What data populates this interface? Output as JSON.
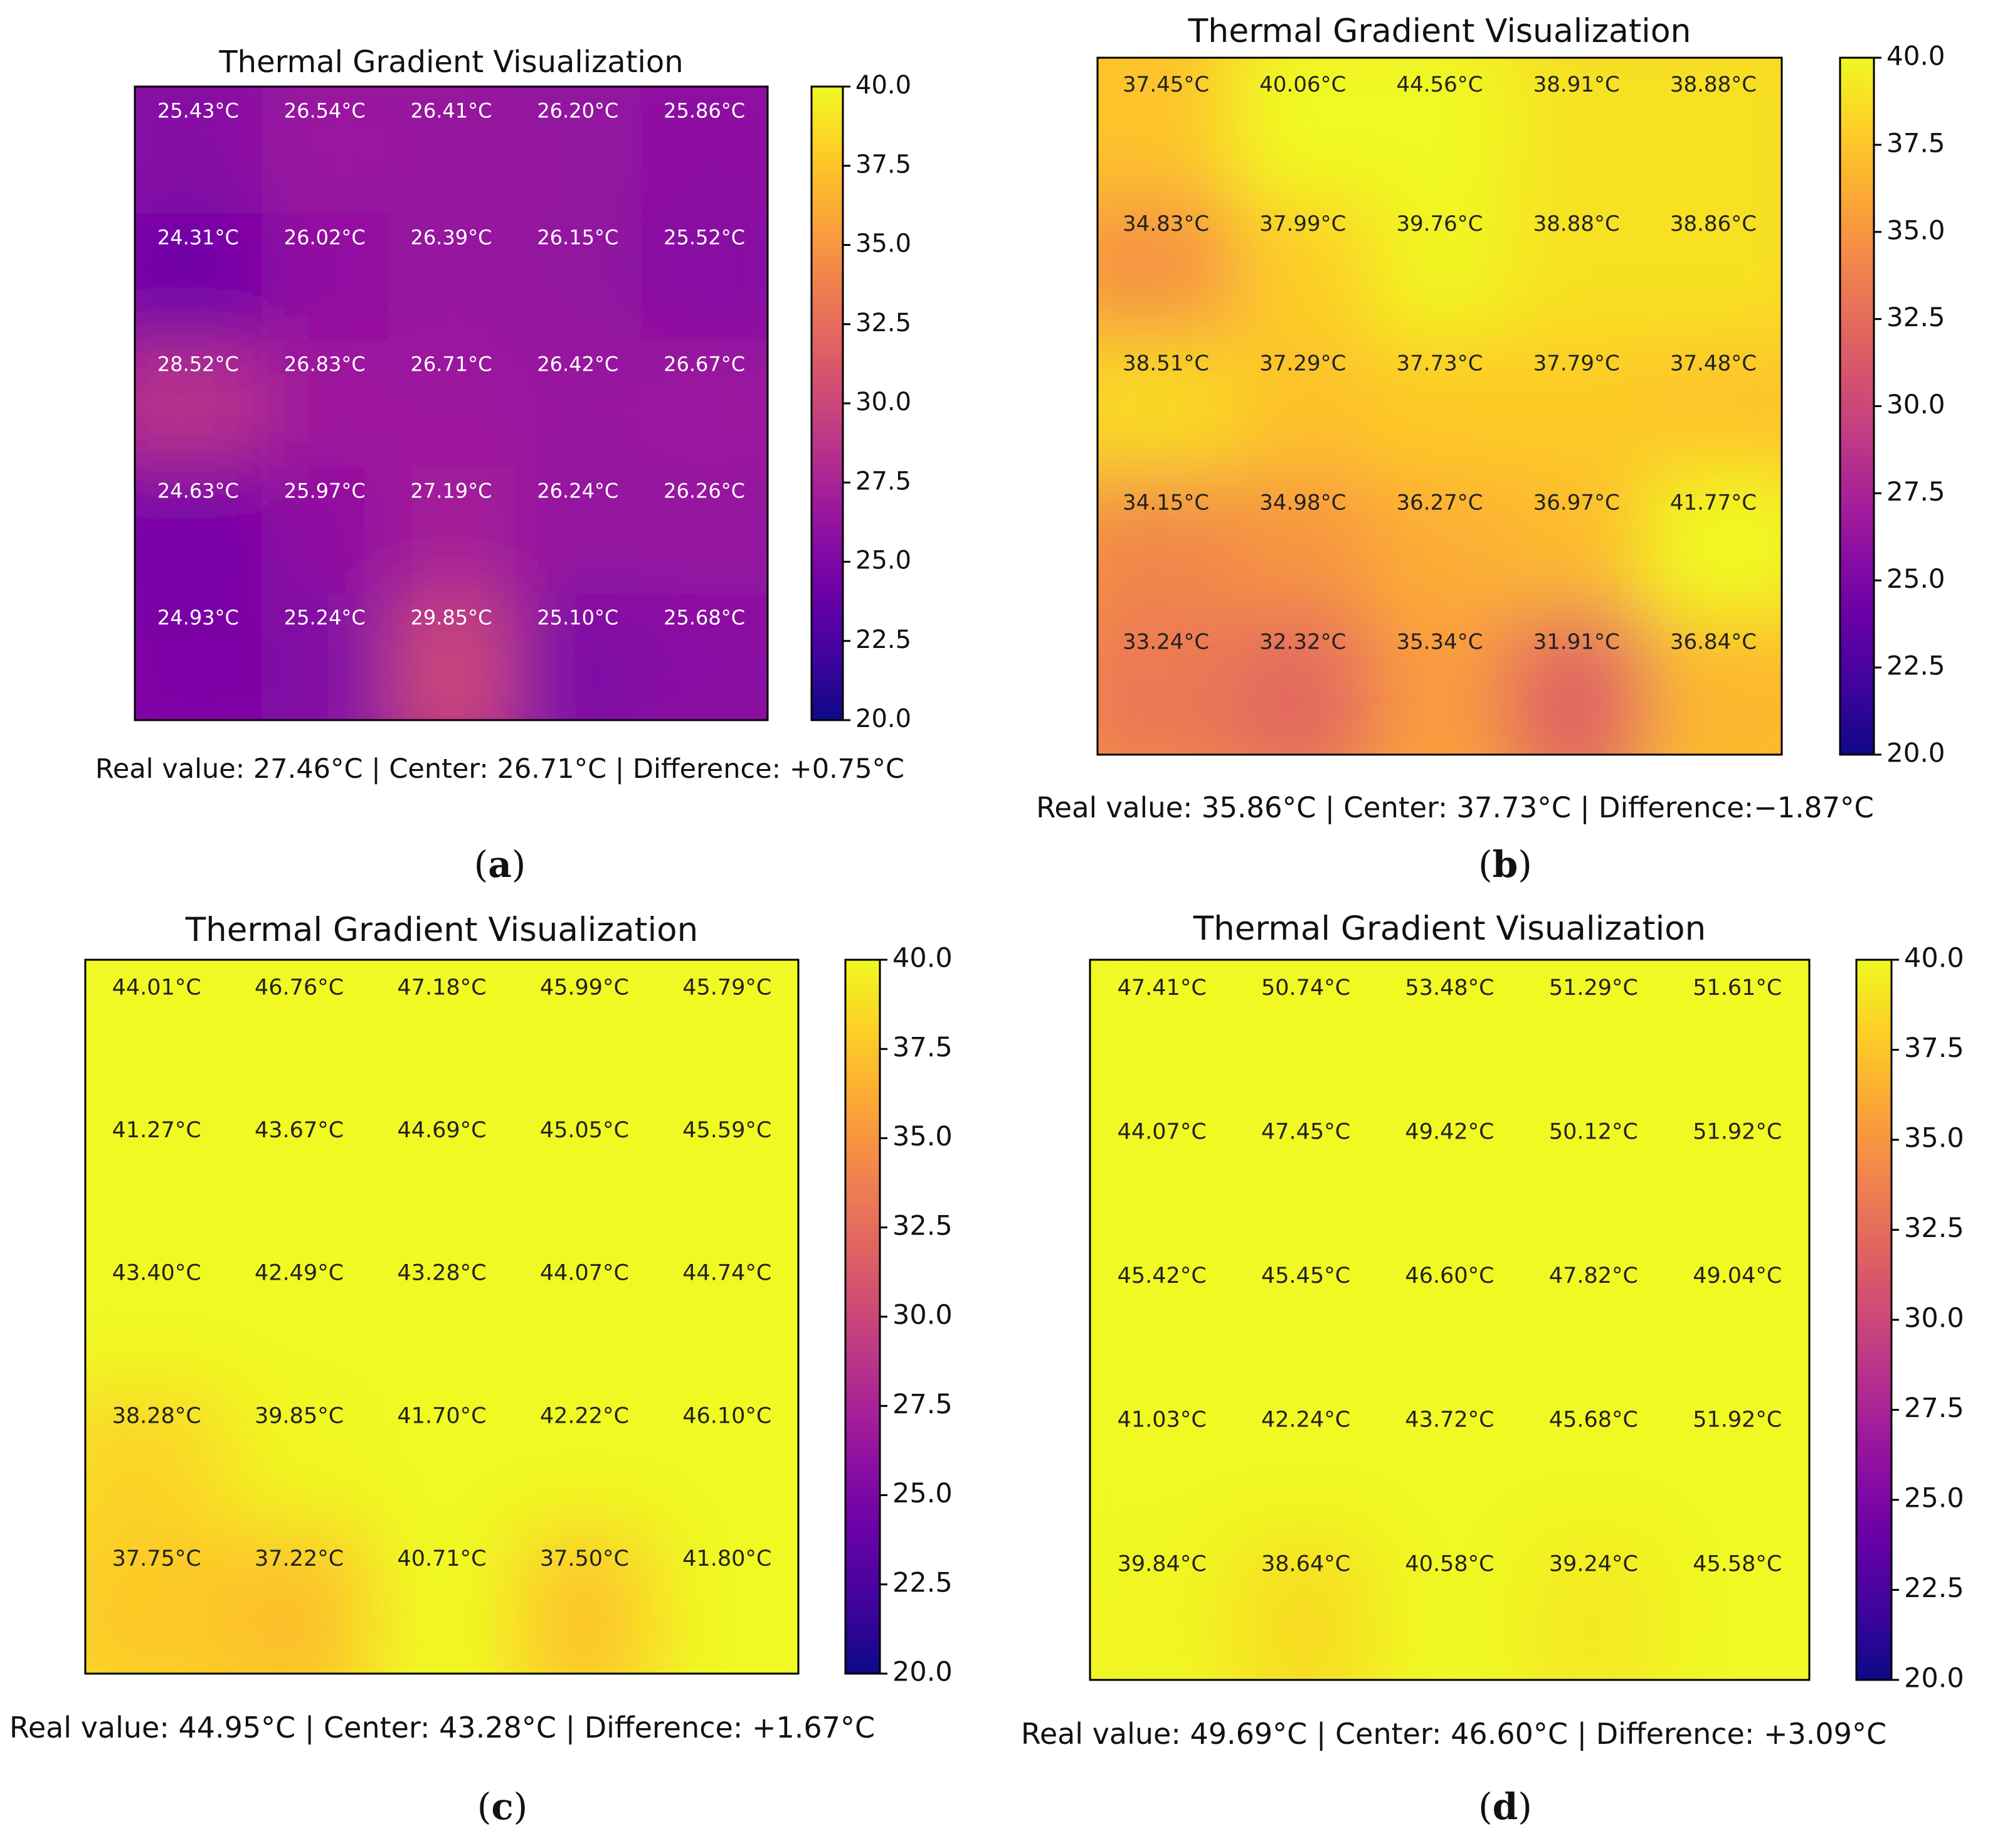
{
  "chart_data": [
    {
      "type": "heatmap",
      "panel_label": "(a)",
      "title": "Thermal Gradient Visualization",
      "colormap": "plasma",
      "colorbar": {
        "range": [
          20.0,
          40.0
        ],
        "ticks": [
          "40.0",
          "37.5",
          "35.0",
          "32.5",
          "30.0",
          "27.5",
          "25.0",
          "22.5",
          "20.0"
        ]
      },
      "grid": [
        [
          "25.43°C",
          "26.54°C",
          "26.41°C",
          "26.20°C",
          "25.86°C"
        ],
        [
          "24.31°C",
          "26.02°C",
          "26.39°C",
          "26.15°C",
          "25.52°C"
        ],
        [
          "28.52°C",
          "26.83°C",
          "26.71°C",
          "26.42°C",
          "26.67°C"
        ],
        [
          "24.63°C",
          "25.97°C",
          "27.19°C",
          "26.24°C",
          "26.26°C"
        ],
        [
          "24.93°C",
          "25.24°C",
          "29.85°C",
          "25.10°C",
          "25.68°C"
        ]
      ],
      "caption": "Real value: 27.46°C | Center: 26.71°C | Difference: +0.75°C"
    },
    {
      "type": "heatmap",
      "panel_label": "(b)",
      "title": "Thermal Gradient Visualization",
      "colormap": "plasma",
      "colorbar": {
        "range": [
          20.0,
          40.0
        ],
        "ticks": [
          "40.0",
          "37.5",
          "35.0",
          "32.5",
          "30.0",
          "27.5",
          "25.0",
          "22.5",
          "20.0"
        ]
      },
      "grid": [
        [
          "37.45°C",
          "40.06°C",
          "44.56°C",
          "38.91°C",
          "38.88°C"
        ],
        [
          "34.83°C",
          "37.99°C",
          "39.76°C",
          "38.88°C",
          "38.86°C"
        ],
        [
          "38.51°C",
          "37.29°C",
          "37.73°C",
          "37.79°C",
          "37.48°C"
        ],
        [
          "34.15°C",
          "34.98°C",
          "36.27°C",
          "36.97°C",
          "41.77°C"
        ],
        [
          "33.24°C",
          "32.32°C",
          "35.34°C",
          "31.91°C",
          "36.84°C"
        ]
      ],
      "caption": "Real value: 35.86°C | Center: 37.73°C | Difference:−1.87°C"
    },
    {
      "type": "heatmap",
      "panel_label": "(c)",
      "title": "Thermal Gradient Visualization",
      "colormap": "plasma",
      "colorbar": {
        "range": [
          20.0,
          40.0
        ],
        "ticks": [
          "40.0",
          "37.5",
          "35.0",
          "32.5",
          "30.0",
          "27.5",
          "25.0",
          "22.5",
          "20.0"
        ]
      },
      "grid": [
        [
          "44.01°C",
          "46.76°C",
          "47.18°C",
          "45.99°C",
          "45.79°C"
        ],
        [
          "41.27°C",
          "43.67°C",
          "44.69°C",
          "45.05°C",
          "45.59°C"
        ],
        [
          "43.40°C",
          "42.49°C",
          "43.28°C",
          "44.07°C",
          "44.74°C"
        ],
        [
          "38.28°C",
          "39.85°C",
          "41.70°C",
          "42.22°C",
          "46.10°C"
        ],
        [
          "37.75°C",
          "37.22°C",
          "40.71°C",
          "37.50°C",
          "41.80°C"
        ]
      ],
      "caption": "Real value: 44.95°C | Center: 43.28°C | Difference: +1.67°C"
    },
    {
      "type": "heatmap",
      "panel_label": "(d)",
      "title": "Thermal Gradient Visualization",
      "colormap": "plasma",
      "colorbar": {
        "range": [
          20.0,
          40.0
        ],
        "ticks": [
          "40.0",
          "37.5",
          "35.0",
          "32.5",
          "30.0",
          "27.5",
          "25.0",
          "22.5",
          "20.0"
        ]
      },
      "grid": [
        [
          "47.41°C",
          "50.74°C",
          "53.48°C",
          "51.29°C",
          "51.61°C"
        ],
        [
          "44.07°C",
          "47.45°C",
          "49.42°C",
          "50.12°C",
          "51.92°C"
        ],
        [
          "45.42°C",
          "45.45°C",
          "46.60°C",
          "47.82°C",
          "49.04°C"
        ],
        [
          "41.03°C",
          "42.24°C",
          "43.72°C",
          "45.68°C",
          "51.92°C"
        ],
        [
          "39.84°C",
          "38.64°C",
          "40.58°C",
          "39.24°C",
          "45.58°C"
        ]
      ],
      "caption": "Real value: 49.69°C | Center: 46.60°C | Difference: +3.09°C"
    }
  ]
}
